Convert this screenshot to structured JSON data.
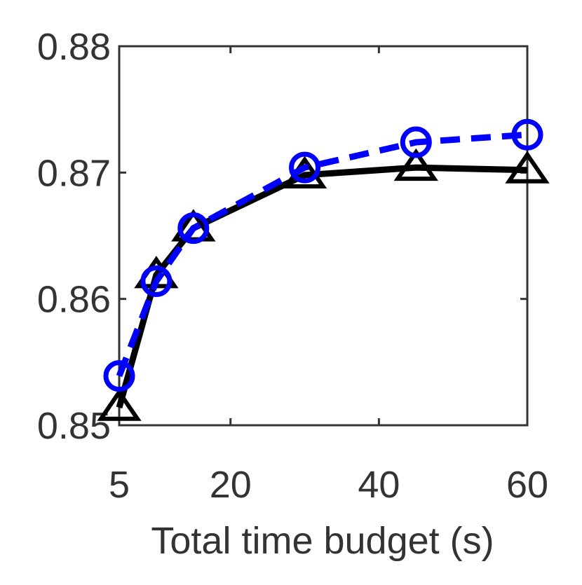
{
  "chart_data": {
    "type": "line",
    "x_label": "Total time budget (s)",
    "x": [
      5,
      10,
      15,
      30,
      45,
      60
    ],
    "series": [
      {
        "color": "#000000",
        "line_style": "solid",
        "marker": "triangle",
        "values": [
          0.8514,
          0.8619,
          0.8656,
          0.8698,
          0.8704,
          0.8702
        ]
      },
      {
        "color": "#0000ff",
        "line_style": "dashed",
        "marker": "circle",
        "values": [
          0.8539,
          0.8614,
          0.8656,
          0.8704,
          0.8724,
          0.873
        ]
      }
    ],
    "xlim": [
      5,
      60
    ],
    "xticks": [
      5,
      20,
      40,
      60
    ],
    "ylim": [
      0.85,
      0.88
    ],
    "yticks": [
      0.85,
      0.86,
      0.87,
      0.88
    ],
    "grid": false
  }
}
